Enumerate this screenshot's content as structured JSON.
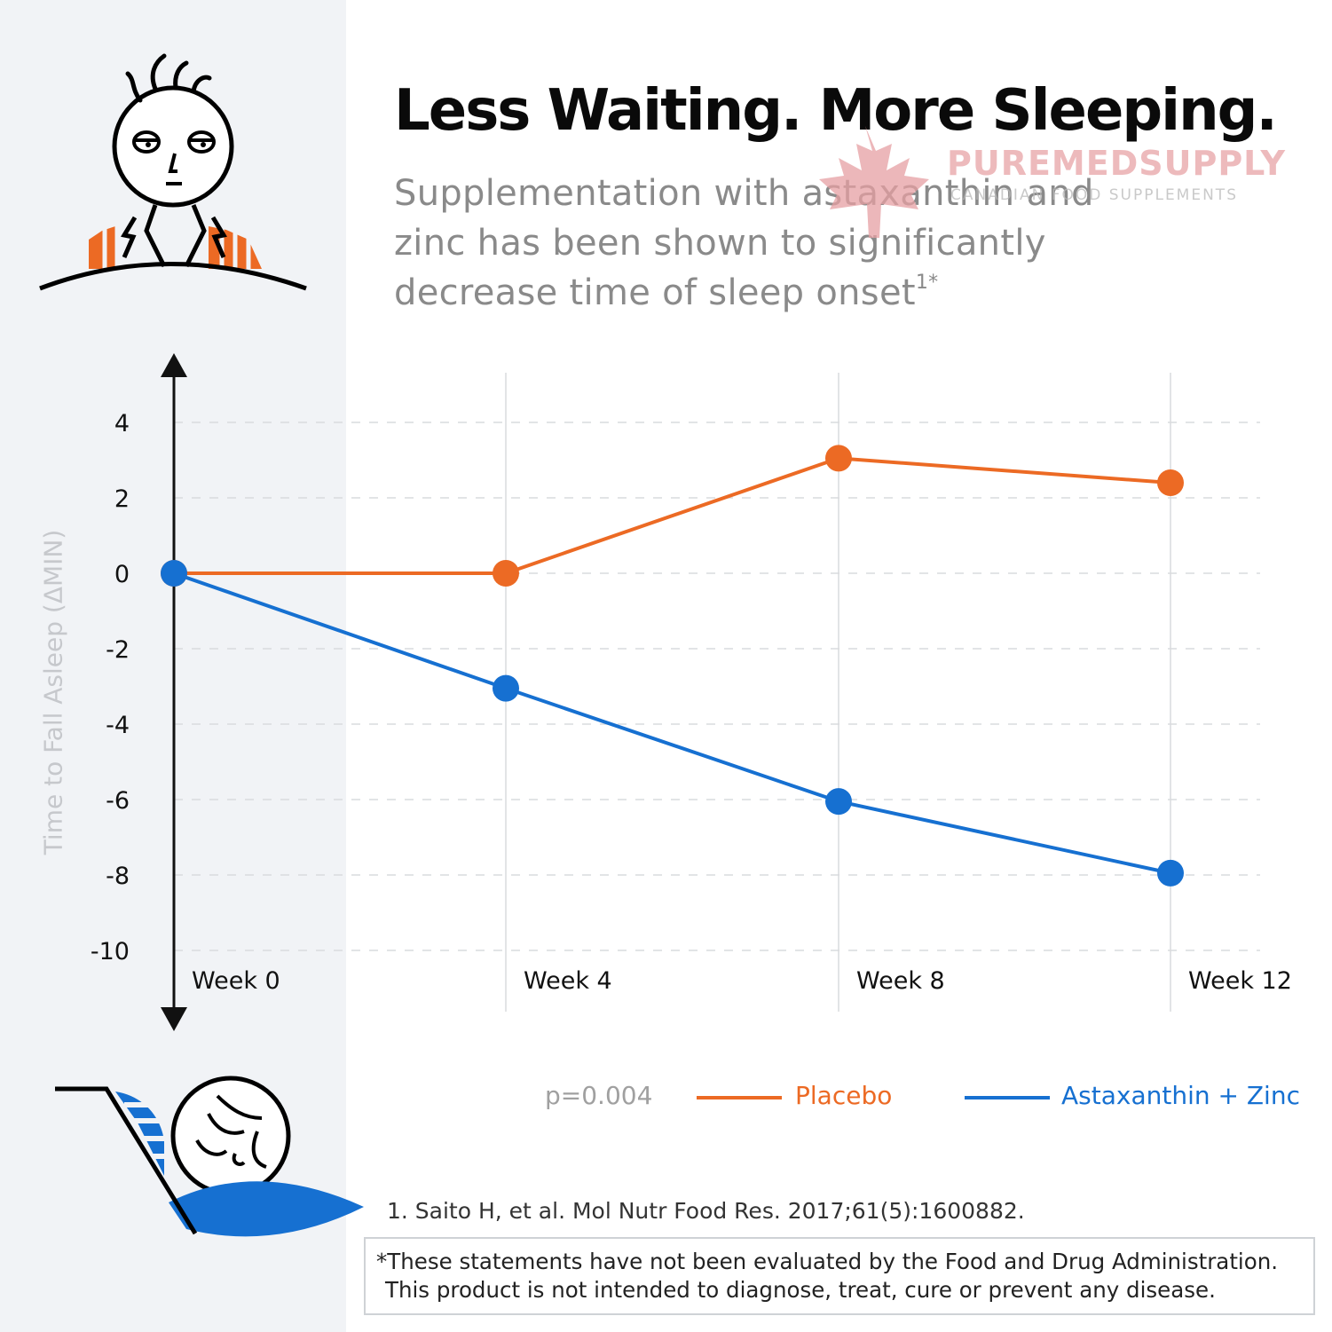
{
  "header": {
    "title": "Less Waiting. More Sleeping.",
    "subtitle_lines": [
      "Supplementation with astaxanthin and",
      "zinc has been shown to significantly",
      "decrease time of sleep onset"
    ],
    "subtitle_footnote_mark": "1*"
  },
  "watermark": {
    "brand": "PUREMEDSUPPLY",
    "tagline": "CANADIAN FOOD SUPPLEMENTS"
  },
  "colors": {
    "placebo": "#ec6a24",
    "treatment": "#1670d1",
    "axis": "#111111",
    "grid": "#d9dbde"
  },
  "icons": {
    "top": "tired-awake-person-icon",
    "bottom": "sleeping-person-in-bed-icon"
  },
  "chart_data": {
    "type": "line",
    "ylabel": "Time to Fall Asleep (ΔMIN)",
    "xlabel": "",
    "categories": [
      "Week 0",
      "Week 4",
      "Week 8",
      "Week 12"
    ],
    "yticks": [
      "4",
      "2",
      "0",
      "-2",
      "-4",
      "-6",
      "-8",
      "-10"
    ],
    "ylim": [
      -10,
      4
    ],
    "grid": true,
    "series": [
      {
        "name": "Placebo",
        "values": [
          0,
          0,
          3.05,
          2.4
        ]
      },
      {
        "name": "Astaxanthin + Zinc",
        "values": [
          0,
          -3.05,
          -6.05,
          -7.95
        ]
      }
    ],
    "p_value": "p=0.004",
    "legend_position": "bottom"
  },
  "footer": {
    "reference": "1. Saito H, et al. Mol Nutr Food Res. 2017;61(5):1600882.",
    "disclaimer_lines": [
      "*These statements have not been evaluated by the Food and Drug Administration.",
      "This product is not intended to diagnose, treat, cure or prevent any disease."
    ]
  }
}
